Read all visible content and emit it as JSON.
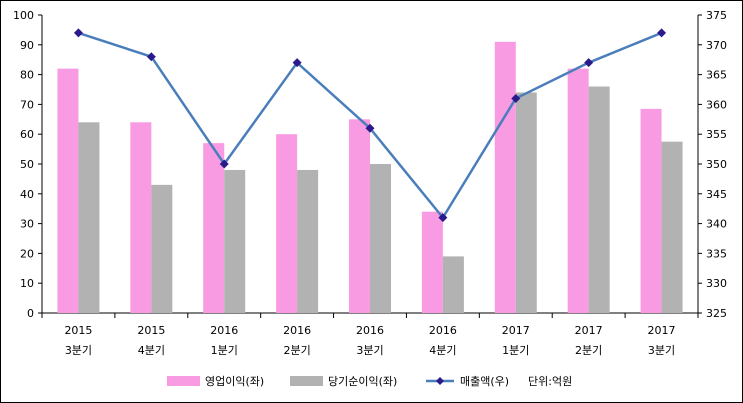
{
  "chart_data": {
    "type": "bar",
    "categories": [
      [
        "2015",
        "3분기"
      ],
      [
        "2015",
        "4분기"
      ],
      [
        "2016",
        "1분기"
      ],
      [
        "2016",
        "2분기"
      ],
      [
        "2016",
        "3분기"
      ],
      [
        "2016",
        "4분기"
      ],
      [
        "2017",
        "1분기"
      ],
      [
        "2017",
        "2분기"
      ],
      [
        "2017",
        "3분기"
      ]
    ],
    "series": [
      {
        "name": "영업이익(좌)",
        "type": "bar",
        "axis": "left",
        "color": "#f99be3",
        "values": [
          82,
          64,
          57,
          60,
          65,
          34,
          91,
          82,
          68.5
        ]
      },
      {
        "name": "당기순이익(좌)",
        "type": "bar",
        "axis": "left",
        "color": "#b2b2b2",
        "values": [
          64,
          43,
          48,
          48,
          50,
          19,
          74,
          76,
          57.5
        ]
      },
      {
        "name": "매출액(우)",
        "type": "line",
        "axis": "right",
        "color": "#4a7ebb",
        "marker_color": "#2a1a8c",
        "values": [
          372,
          368,
          350,
          367,
          356,
          341,
          361,
          367,
          372
        ]
      }
    ],
    "y_left": {
      "min": 0,
      "max": 100,
      "step": 10
    },
    "y_right": {
      "min": 325,
      "max": 375,
      "step": 5
    },
    "unit_label": "단위:억원",
    "legend_position": "bottom",
    "grid": false
  }
}
